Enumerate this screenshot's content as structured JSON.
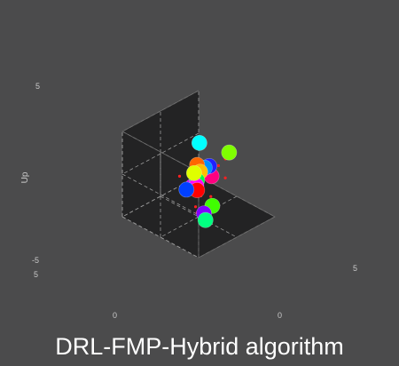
{
  "chart_data": {
    "type": "scatter",
    "projection": "3d",
    "title": "",
    "caption": "DRL-FMP-Hybrid algorithm",
    "zlabel": "Up",
    "ticks": {
      "z_top": "5",
      "z_bottom": "-5",
      "left_outer": "5",
      "left_inner": "0",
      "right_inner": "0",
      "right_outer": "5"
    },
    "grid": true,
    "colors": {
      "background": "#4b4b4c",
      "pane": "#232324",
      "grid": "#9a9a9a",
      "waypoint": "#ff2020"
    },
    "agents": [
      {
        "label": "cyan-agent",
        "color": "#00ffff",
        "x": 0.2,
        "y": 0.3,
        "z": 3.9
      },
      {
        "label": "lime-agent",
        "color": "#7fff00",
        "x": -3.6,
        "y": 0.4,
        "z": 1.0
      },
      {
        "label": "orange-agent",
        "color": "#ff6600",
        "x": -0.4,
        "y": -0.6,
        "z": 0.6
      },
      {
        "label": "yellow-agent",
        "color": "#dfff00",
        "x": 0.8,
        "y": 0.2,
        "z": 0.6
      },
      {
        "label": "blue-agent",
        "color": "#0040ff",
        "x": 2.9,
        "y": 1.3,
        "z": 0.2
      },
      {
        "label": "amber-agent",
        "color": "#ffbf00",
        "x": -0.6,
        "y": -0.4,
        "z": -0.2
      },
      {
        "label": "indigo-agent",
        "color": "#2020ff",
        "x": -2.0,
        "y": -0.6,
        "z": -0.3
      },
      {
        "label": "azure-agent",
        "color": "#0090ff",
        "x": -1.6,
        "y": -0.8,
        "z": -0.4
      },
      {
        "label": "green-agent",
        "color": "#00ff40",
        "x": -0.4,
        "y": -0.6,
        "z": -1.2
      },
      {
        "label": "magenta-agent",
        "color": "#ff00ff",
        "x": 0.3,
        "y": 0.0,
        "z": -1.2
      },
      {
        "label": "red-agent",
        "color": "#ff0000",
        "x": 0.5,
        "y": 0.3,
        "z": -1.5
      },
      {
        "label": "violet-agent",
        "color": "#d000ff",
        "x": -0.2,
        "y": -1.0,
        "z": -2.0
      },
      {
        "label": "rose-agent",
        "color": "#ff0080",
        "x": -3.0,
        "y": -1.3,
        "z": -2.3
      },
      {
        "label": "purple-agent",
        "color": "#8000ff",
        "x": 0.7,
        "y": 1.4,
        "z": -3.6
      },
      {
        "label": "spring-agent",
        "color": "#00ff80",
        "x": 1.0,
        "y": 1.9,
        "z": -4.0
      },
      {
        "label": "chartreuse-agent",
        "color": "#40ff00",
        "x": -1.5,
        "y": 0.3,
        "z": -4.3
      }
    ],
    "waypoints": [
      {
        "x": -0.2,
        "y": 0.1,
        "z": 2.9
      },
      {
        "x": -3.4,
        "y": 0.1,
        "z": 0.2
      },
      {
        "x": 1.4,
        "y": 0.8,
        "z": 1.2
      },
      {
        "x": 3.7,
        "y": 1.2,
        "z": 2.1
      },
      {
        "x": -3.8,
        "y": -1.2,
        "z": -1.4
      },
      {
        "x": -4.0,
        "y": -0.5,
        "z": -2.6
      },
      {
        "x": -3.2,
        "y": -2.2,
        "z": -3.2
      },
      {
        "x": -1.4,
        "y": 0.2,
        "z": -3.2
      },
      {
        "x": 0.2,
        "y": 0.5,
        "z": -2.2
      },
      {
        "x": -0.4,
        "y": -0.8,
        "z": -4.4
      },
      {
        "x": -1.0,
        "y": -1.2,
        "z": -5.6
      }
    ]
  }
}
